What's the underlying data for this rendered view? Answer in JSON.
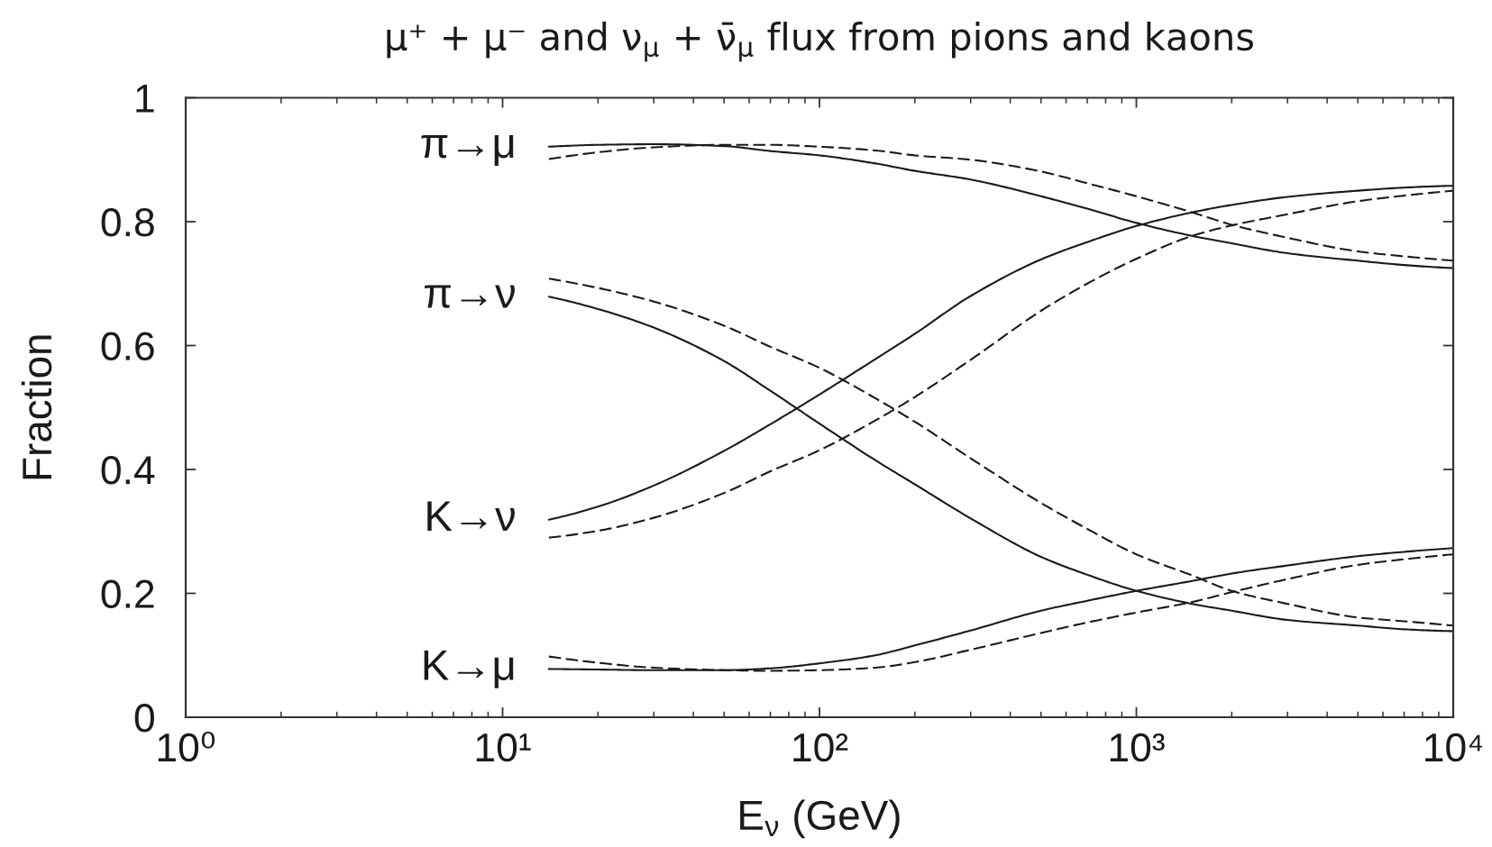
{
  "chart_data": {
    "type": "line",
    "title": "μ⁺ + μ⁻ and ν$_{μ}$ + ν̄$_{μ}$ flux from pions and kaons",
    "xlabel": "E$_{ν}$ (GeV)",
    "ylabel": "Fraction",
    "log": "x",
    "xlim": [
      1,
      10000
    ],
    "xticks": [
      {
        "value": 1,
        "label": "10⁰"
      },
      {
        "value": 10,
        "label": "10¹"
      },
      {
        "value": 100,
        "label": "10²"
      },
      {
        "value": 1000,
        "label": "10³"
      },
      {
        "value": 10000,
        "label": "10⁴"
      }
    ],
    "ylim": [
      0,
      1
    ],
    "yticks": [
      0,
      0.2,
      0.4,
      0.6,
      0.8,
      1
    ],
    "x": [
      14,
      20,
      30,
      50,
      70,
      100,
      150,
      200,
      300,
      500,
      700,
      1000,
      1500,
      2000,
      3000,
      5000,
      7000,
      10000
    ],
    "series": [
      {
        "name": "π→μ",
        "color": "#1a1a1a",
        "line_style": "solid",
        "values": [
          0.921,
          0.924,
          0.925,
          0.922,
          0.914,
          0.907,
          0.894,
          0.882,
          0.868,
          0.841,
          0.821,
          0.798,
          0.777,
          0.765,
          0.749,
          0.737,
          0.73,
          0.725
        ]
      },
      {
        "color": "#1a1a1a",
        "line_style": "dashed",
        "values": [
          0.901,
          0.912,
          0.92,
          0.924,
          0.924,
          0.921,
          0.915,
          0.907,
          0.9,
          0.881,
          0.862,
          0.841,
          0.815,
          0.795,
          0.774,
          0.752,
          0.744,
          0.737
        ]
      },
      {
        "name": "π→ν",
        "color": "#1a1a1a",
        "line_style": "solid",
        "values": [
          0.679,
          0.659,
          0.629,
          0.575,
          0.527,
          0.474,
          0.415,
          0.376,
          0.321,
          0.259,
          0.23,
          0.204,
          0.183,
          0.172,
          0.157,
          0.148,
          0.142,
          0.139
        ]
      },
      {
        "color": "#1a1a1a",
        "line_style": "dashed",
        "values": [
          0.708,
          0.693,
          0.671,
          0.632,
          0.598,
          0.564,
          0.515,
          0.477,
          0.418,
          0.346,
          0.304,
          0.263,
          0.229,
          0.204,
          0.183,
          0.161,
          0.155,
          0.148
        ]
      },
      {
        "name": "K→ν",
        "color": "#1a1a1a",
        "line_style": "solid",
        "values": [
          0.319,
          0.34,
          0.374,
          0.43,
          0.473,
          0.521,
          0.578,
          0.619,
          0.68,
          0.739,
          0.767,
          0.793,
          0.815,
          0.827,
          0.84,
          0.85,
          0.855,
          0.858
        ]
      },
      {
        "color": "#1a1a1a",
        "line_style": "dashed",
        "values": [
          0.29,
          0.301,
          0.322,
          0.362,
          0.397,
          0.431,
          0.479,
          0.517,
          0.577,
          0.656,
          0.7,
          0.74,
          0.777,
          0.794,
          0.812,
          0.833,
          0.842,
          0.85
        ]
      },
      {
        "name": "K→μ",
        "color": "#1a1a1a",
        "line_style": "solid",
        "values": [
          0.078,
          0.077,
          0.076,
          0.076,
          0.079,
          0.087,
          0.1,
          0.116,
          0.14,
          0.172,
          0.188,
          0.204,
          0.22,
          0.232,
          0.245,
          0.26,
          0.267,
          0.273
        ]
      },
      {
        "color": "#1a1a1a",
        "line_style": "dashed",
        "values": [
          0.098,
          0.088,
          0.08,
          0.076,
          0.075,
          0.076,
          0.08,
          0.089,
          0.109,
          0.136,
          0.153,
          0.169,
          0.186,
          0.202,
          0.223,
          0.246,
          0.255,
          0.263
        ]
      }
    ]
  }
}
